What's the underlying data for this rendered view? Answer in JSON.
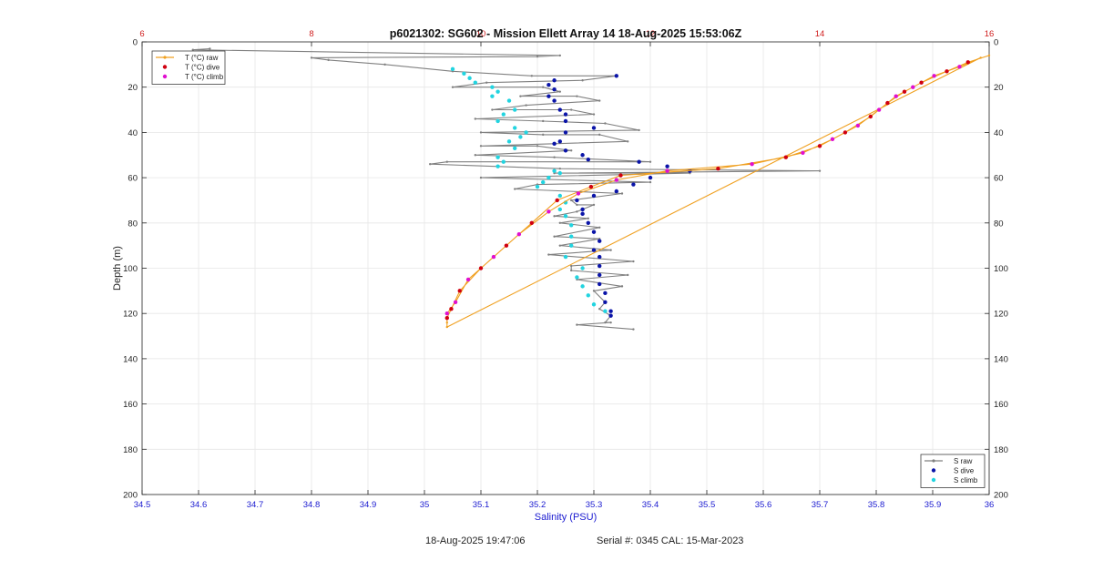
{
  "chart_data": {
    "type": "line",
    "title": "p6021302: SG602 - Mission Ellett Array 14 18-Aug-2025 15:53:06Z",
    "xlabel": "Salinity (PSU)",
    "ylabel": "Depth (m)",
    "xlim": [
      34.5,
      36
    ],
    "ylim": [
      0,
      200
    ],
    "y_reversed": true,
    "x2lim": [
      6,
      16
    ],
    "x_ticks": [
      "34.5",
      "34.6",
      "34.7",
      "34.8",
      "34.9",
      "35",
      "35.1",
      "35.2",
      "35.3",
      "35.4",
      "35.5",
      "35.6",
      "35.7",
      "35.8",
      "35.9",
      "36"
    ],
    "x2_ticks": [
      "6",
      "8",
      "10",
      "12",
      "14",
      "16"
    ],
    "y_ticks": [
      "0",
      "20",
      "40",
      "60",
      "80",
      "100",
      "120",
      "140",
      "160",
      "180",
      "200"
    ],
    "grid": true,
    "legends": [
      {
        "placement": "top-left",
        "entries": [
          "T (°C) raw",
          "T (°C) dive",
          "T (°C) climb"
        ]
      },
      {
        "placement": "bottom-right",
        "entries": [
          "S raw",
          "S dive",
          "S climb"
        ]
      }
    ],
    "series": [
      {
        "name": "S raw",
        "axis": "salinity",
        "color": "#808080",
        "style": "line-marker",
        "points": [
          [
            34.62,
            3
          ],
          [
            34.59,
            3.5
          ],
          [
            35.24,
            6
          ],
          [
            35.2,
            6.5
          ],
          [
            34.8,
            7
          ],
          [
            34.83,
            8
          ],
          [
            34.93,
            10
          ],
          [
            35.05,
            13
          ],
          [
            35.19,
            15
          ],
          [
            35.34,
            15
          ],
          [
            35.28,
            17
          ],
          [
            35.11,
            18
          ],
          [
            35.05,
            20
          ],
          [
            35.21,
            20
          ],
          [
            35.24,
            22
          ],
          [
            35.17,
            24
          ],
          [
            35.27,
            24
          ],
          [
            35.31,
            26
          ],
          [
            35.18,
            28
          ],
          [
            35.12,
            30
          ],
          [
            35.26,
            30
          ],
          [
            35.3,
            32
          ],
          [
            35.09,
            34
          ],
          [
            35.21,
            35
          ],
          [
            35.32,
            36
          ],
          [
            35.38,
            39
          ],
          [
            35.1,
            40
          ],
          [
            35.21,
            41
          ],
          [
            35.31,
            41
          ],
          [
            35.36,
            44
          ],
          [
            35.1,
            46
          ],
          [
            35.2,
            46
          ],
          [
            35.26,
            48
          ],
          [
            35.09,
            50
          ],
          [
            35.23,
            51
          ],
          [
            35.4,
            53
          ],
          [
            35.04,
            53
          ],
          [
            35.01,
            54
          ],
          [
            35.24,
            56
          ],
          [
            35.7,
            57
          ],
          [
            35.23,
            58
          ],
          [
            35.47,
            58
          ],
          [
            35.1,
            60
          ],
          [
            35.4,
            62
          ],
          [
            35.2,
            63
          ],
          [
            35.16,
            65
          ],
          [
            35.35,
            67
          ],
          [
            35.26,
            70
          ],
          [
            35.27,
            72
          ],
          [
            35.3,
            72
          ],
          [
            35.27,
            75
          ],
          [
            35.23,
            77
          ],
          [
            35.29,
            78
          ],
          [
            35.24,
            80
          ],
          [
            35.31,
            82
          ],
          [
            35.23,
            86
          ],
          [
            35.31,
            87
          ],
          [
            35.24,
            90
          ],
          [
            35.33,
            92
          ],
          [
            35.22,
            94
          ],
          [
            35.37,
            97
          ],
          [
            35.26,
            99
          ],
          [
            35.26,
            101
          ],
          [
            35.36,
            103
          ],
          [
            35.27,
            105
          ],
          [
            35.35,
            108
          ],
          [
            35.3,
            110
          ],
          [
            35.32,
            115
          ],
          [
            35.31,
            118
          ],
          [
            35.33,
            121
          ],
          [
            35.32,
            124
          ],
          [
            35.33,
            124
          ],
          [
            35.27,
            125
          ],
          [
            35.37,
            127
          ]
        ]
      },
      {
        "name": "S dive",
        "axis": "salinity",
        "color": "#0a14a8",
        "style": "marker",
        "points": [
          [
            35.34,
            15
          ],
          [
            35.23,
            17
          ],
          [
            35.22,
            19
          ],
          [
            35.23,
            21
          ],
          [
            35.22,
            24
          ],
          [
            35.23,
            26
          ],
          [
            35.24,
            30
          ],
          [
            35.25,
            32
          ],
          [
            35.25,
            35
          ],
          [
            35.3,
            38
          ],
          [
            35.25,
            40
          ],
          [
            35.24,
            44
          ],
          [
            35.23,
            45
          ],
          [
            35.25,
            48
          ],
          [
            35.28,
            50
          ],
          [
            35.29,
            52
          ],
          [
            35.38,
            53
          ],
          [
            35.43,
            55
          ],
          [
            35.47,
            57
          ],
          [
            35.4,
            60
          ],
          [
            35.37,
            63
          ],
          [
            35.34,
            66
          ],
          [
            35.3,
            68
          ],
          [
            35.27,
            70
          ],
          [
            35.28,
            74
          ],
          [
            35.28,
            76
          ],
          [
            35.29,
            80
          ],
          [
            35.3,
            84
          ],
          [
            35.31,
            88
          ],
          [
            35.3,
            92
          ],
          [
            35.31,
            95
          ],
          [
            35.31,
            99
          ],
          [
            35.31,
            103
          ],
          [
            35.31,
            107
          ],
          [
            35.32,
            111
          ],
          [
            35.32,
            115
          ],
          [
            35.33,
            119
          ],
          [
            35.33,
            121
          ]
        ]
      },
      {
        "name": "S climb",
        "axis": "salinity",
        "color": "#22d4e0",
        "style": "marker",
        "points": [
          [
            35.05,
            12
          ],
          [
            35.07,
            14
          ],
          [
            35.08,
            16
          ],
          [
            35.09,
            18
          ],
          [
            35.12,
            20
          ],
          [
            35.13,
            22
          ],
          [
            35.12,
            24
          ],
          [
            35.15,
            26
          ],
          [
            35.16,
            30
          ],
          [
            35.14,
            32
          ],
          [
            35.13,
            35
          ],
          [
            35.16,
            38
          ],
          [
            35.18,
            40
          ],
          [
            35.17,
            42
          ],
          [
            35.15,
            44
          ],
          [
            35.16,
            47
          ],
          [
            35.13,
            51
          ],
          [
            35.14,
            53
          ],
          [
            35.13,
            55
          ],
          [
            35.23,
            57
          ],
          [
            35.24,
            58
          ],
          [
            35.22,
            60
          ],
          [
            35.21,
            62
          ],
          [
            35.2,
            64
          ],
          [
            35.24,
            68
          ],
          [
            35.25,
            71
          ],
          [
            35.24,
            74
          ],
          [
            35.25,
            77
          ],
          [
            35.26,
            81
          ],
          [
            35.26,
            86
          ],
          [
            35.26,
            90
          ],
          [
            35.25,
            95
          ],
          [
            35.28,
            100
          ],
          [
            35.27,
            104
          ],
          [
            35.28,
            108
          ],
          [
            35.29,
            112
          ],
          [
            35.3,
            116
          ],
          [
            35.32,
            119
          ]
        ]
      },
      {
        "name": "T (°C) raw",
        "axis": "temperature",
        "color": "#f0a020",
        "style": "line-marker",
        "points": [
          [
            16.0,
            6
          ],
          [
            15.75,
            9
          ],
          [
            15.5,
            13
          ],
          [
            15.2,
            18
          ],
          [
            15.0,
            22
          ],
          [
            14.8,
            27
          ],
          [
            14.6,
            33
          ],
          [
            14.3,
            40
          ],
          [
            14.0,
            46
          ],
          [
            13.6,
            51
          ],
          [
            12.8,
            56
          ],
          [
            11.65,
            59
          ],
          [
            11.3,
            64
          ],
          [
            10.9,
            70
          ],
          [
            10.6,
            80
          ],
          [
            10.3,
            90
          ],
          [
            10.0,
            100
          ],
          [
            9.75,
            110
          ],
          [
            9.65,
            118
          ],
          [
            9.6,
            122
          ],
          [
            9.6,
            124
          ],
          [
            9.6,
            126
          ],
          [
            15.9,
            7
          ],
          [
            15.65,
            11
          ],
          [
            15.35,
            15
          ],
          [
            15.1,
            20
          ],
          [
            14.9,
            24
          ],
          [
            14.7,
            30
          ],
          [
            14.45,
            37
          ],
          [
            14.15,
            43
          ],
          [
            13.8,
            49
          ],
          [
            13.2,
            54
          ],
          [
            12.2,
            57
          ],
          [
            11.6,
            61
          ],
          [
            11.15,
            67
          ],
          [
            10.8,
            75
          ],
          [
            10.45,
            85
          ],
          [
            10.15,
            95
          ],
          [
            9.85,
            105
          ],
          [
            9.7,
            115
          ],
          [
            9.6,
            120
          ]
        ]
      },
      {
        "name": "T (°C) dive",
        "axis": "temperature",
        "color": "#d00010",
        "style": "marker",
        "points": [
          [
            15.75,
            9
          ],
          [
            15.5,
            13
          ],
          [
            15.2,
            18
          ],
          [
            15.0,
            22
          ],
          [
            14.8,
            27
          ],
          [
            14.6,
            33
          ],
          [
            14.3,
            40
          ],
          [
            14.0,
            46
          ],
          [
            13.6,
            51
          ],
          [
            12.8,
            56
          ],
          [
            11.65,
            59
          ],
          [
            11.3,
            64
          ],
          [
            10.9,
            70
          ],
          [
            10.6,
            80
          ],
          [
            10.3,
            90
          ],
          [
            10.0,
            100
          ],
          [
            9.75,
            110
          ],
          [
            9.65,
            118
          ],
          [
            9.6,
            122
          ]
        ]
      },
      {
        "name": "T (°C) climb",
        "axis": "temperature",
        "color": "#e010d0",
        "style": "marker",
        "points": [
          [
            15.65,
            11
          ],
          [
            15.35,
            15
          ],
          [
            15.1,
            20
          ],
          [
            14.9,
            24
          ],
          [
            14.7,
            30
          ],
          [
            14.45,
            37
          ],
          [
            14.15,
            43
          ],
          [
            13.8,
            49
          ],
          [
            13.2,
            54
          ],
          [
            12.2,
            57
          ],
          [
            11.6,
            61
          ],
          [
            11.15,
            67
          ],
          [
            10.8,
            75
          ],
          [
            10.45,
            85
          ],
          [
            10.15,
            95
          ],
          [
            9.85,
            105
          ],
          [
            9.7,
            115
          ],
          [
            9.6,
            120
          ]
        ]
      }
    ]
  },
  "footer": {
    "timestamp": "18-Aug-2025 19:47:06",
    "serial": "Serial #: 0345  CAL: 15-Mar-2023"
  }
}
